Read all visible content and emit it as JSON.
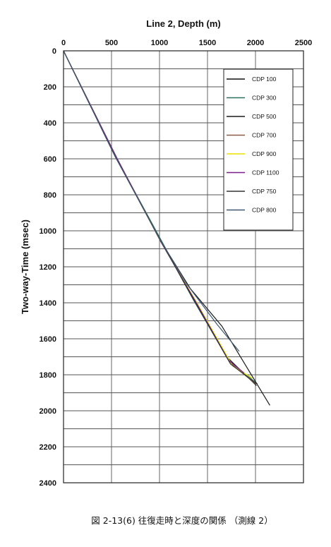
{
  "chart_data": {
    "type": "line",
    "title": "Line 2, Depth (m)",
    "xlabel": "Line 2, Depth (m)",
    "ylabel": "Two-way-Time (msec)",
    "x_axis_position": "top",
    "y_axis_inverted": true,
    "xlim": [
      0,
      2500
    ],
    "ylim": [
      0,
      2400
    ],
    "x_ticks": [
      0,
      500,
      1000,
      1500,
      2000,
      2500
    ],
    "y_ticks": [
      0,
      200,
      400,
      600,
      800,
      1000,
      1200,
      1400,
      1600,
      1800,
      2000,
      2200,
      2400
    ],
    "x_grid_step": 500,
    "y_grid_step": 100,
    "grid": true,
    "legend_position": "top-right",
    "series": [
      {
        "name": "CDP 100",
        "color": "#111111",
        "points": [
          [
            0,
            0
          ],
          [
            540,
            590
          ],
          [
            1000,
            1040
          ],
          [
            1350,
            1380
          ],
          [
            1700,
            1700
          ],
          [
            2010,
            1860
          ]
        ]
      },
      {
        "name": "CDP 300",
        "color": "#2f6f5f",
        "points": [
          [
            0,
            0
          ],
          [
            550,
            595
          ],
          [
            1010,
            1045
          ],
          [
            1360,
            1390
          ],
          [
            1720,
            1720
          ],
          [
            2020,
            1850
          ]
        ]
      },
      {
        "name": "CDP 500",
        "color": "#1a1a1a",
        "points": [
          [
            0,
            0
          ],
          [
            545,
            590
          ],
          [
            1005,
            1050
          ],
          [
            1320,
            1320
          ],
          [
            1650,
            1530
          ],
          [
            2150,
            1970
          ]
        ]
      },
      {
        "name": "CDP 700",
        "color": "#8a5a44",
        "points": [
          [
            0,
            0
          ],
          [
            560,
            600
          ],
          [
            1010,
            1055
          ],
          [
            1380,
            1400
          ],
          [
            1750,
            1740
          ],
          [
            2000,
            1850
          ]
        ]
      },
      {
        "name": "CDP 900",
        "color": "#e8e000",
        "points": [
          [
            0,
            0
          ],
          [
            560,
            602
          ],
          [
            1010,
            1058
          ],
          [
            1400,
            1410
          ],
          [
            1760,
            1750
          ],
          [
            1970,
            1820
          ]
        ]
      },
      {
        "name": "CDP 1100",
        "color": "#7a1e8a",
        "points": [
          [
            0,
            0
          ],
          [
            565,
            605
          ],
          [
            1015,
            1062
          ],
          [
            1390,
            1405
          ],
          [
            1720,
            1720
          ],
          [
            1880,
            1790
          ]
        ]
      },
      {
        "name": "CDP 750",
        "color": "#333333",
        "points": [
          [
            0,
            0
          ],
          [
            550,
            598
          ],
          [
            1008,
            1052
          ],
          [
            1370,
            1395
          ],
          [
            1740,
            1740
          ],
          [
            2010,
            1850
          ]
        ]
      },
      {
        "name": "CDP 800",
        "color": "#3c5870",
        "points": [
          [
            0,
            0
          ],
          [
            548,
            596
          ],
          [
            1000,
            1045
          ],
          [
            1290,
            1300
          ],
          [
            1600,
            1520
          ],
          [
            1830,
            1670
          ]
        ]
      }
    ]
  },
  "caption": "図 2-13(6)  往復走時と深度の関係 （測線 2）"
}
